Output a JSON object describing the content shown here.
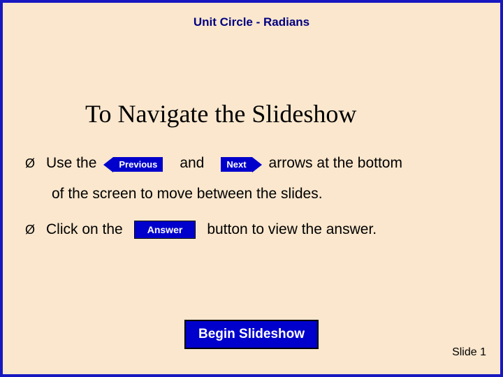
{
  "header": {
    "title": "Unit Circle - Radians"
  },
  "heading": "To Navigate the Slideshow",
  "instr": {
    "use_the": "Use the",
    "prev_label": "Previous",
    "and": "and",
    "next_label": "Next",
    "arrows_tail": "arrows at the bottom",
    "line2": "of the screen to move between the slides.",
    "click_on": "Click on the",
    "answer_label": "Answer",
    "answer_tail": "button to view the answer."
  },
  "begin_label": "Begin Slideshow",
  "slide_num": "Slide 1",
  "bullet_glyph": "Ø"
}
